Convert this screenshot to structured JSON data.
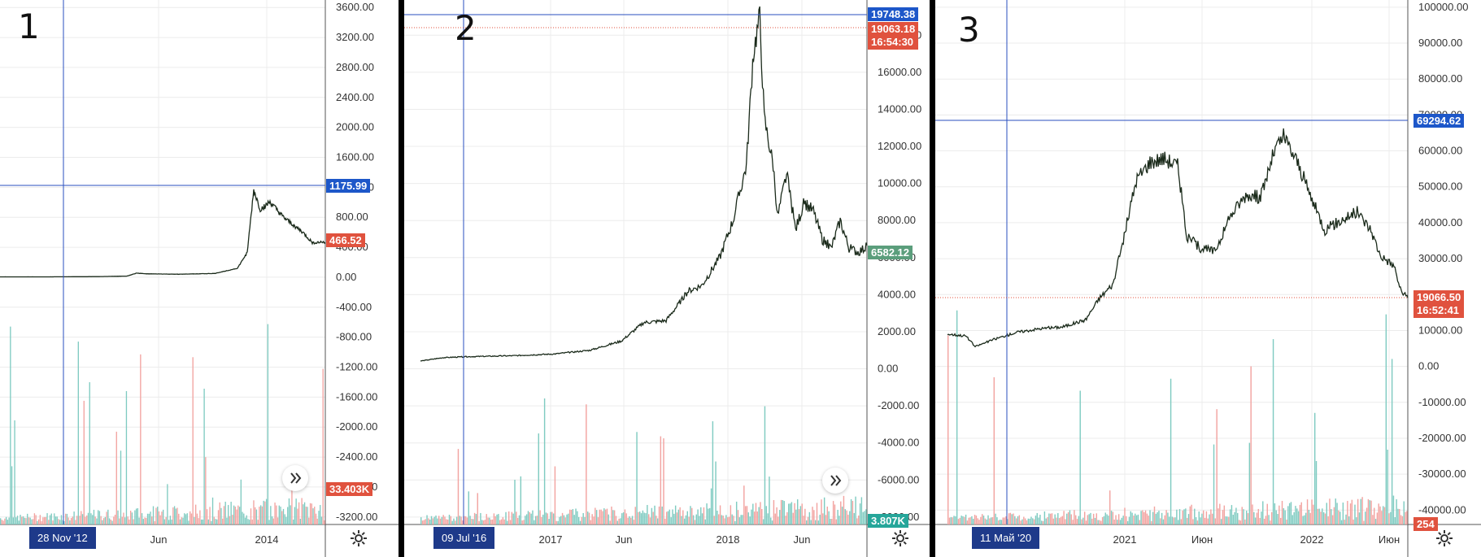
{
  "chart_data": [
    {
      "type": "line",
      "panel_label": "1",
      "yticks": [
        "3600.00",
        "3200.00",
        "2800.00",
        "2400.00",
        "2000.00",
        "1600.00",
        "1200.00",
        "800.00",
        "400.00",
        "0.00",
        "-400.00",
        "-800.00",
        "-1200.00",
        "-1600.00",
        "-2000.00",
        "-2400.00",
        "-2800.00",
        "-3200.00"
      ],
      "ylim": [
        -3300,
        3700
      ],
      "xticks": [
        "Jun",
        "2014"
      ],
      "crosshair_date": "28 Nov '12",
      "crosshair_value": "1175.99",
      "last_price": "466.52",
      "volume_label": "33.403K",
      "price_series": [
        [
          0,
          5
        ],
        [
          0.15,
          5
        ],
        [
          0.3,
          8
        ],
        [
          0.39,
          15
        ],
        [
          0.42,
          55
        ],
        [
          0.45,
          45
        ],
        [
          0.55,
          40
        ],
        [
          0.66,
          50
        ],
        [
          0.73,
          120
        ],
        [
          0.76,
          330
        ],
        [
          0.78,
          1160
        ],
        [
          0.8,
          900
        ],
        [
          0.83,
          1000
        ],
        [
          0.87,
          800
        ],
        [
          0.9,
          700
        ],
        [
          0.93,
          600
        ],
        [
          0.96,
          460
        ],
        [
          1,
          470
        ]
      ]
    },
    {
      "type": "line",
      "panel_label": "2",
      "yticks": [
        "18000.00",
        "16000.00",
        "14000.00",
        "12000.00",
        "10000.00",
        "8000.00",
        "6000.00",
        "4000.00",
        "2000.00",
        "0.00",
        "-2000.00",
        "-4000.00",
        "-6000.00",
        "-8000.00"
      ],
      "ylim": [
        -8400,
        19900
      ],
      "xticks": [
        "2017",
        "Jun",
        "2018",
        "Jun"
      ],
      "crosshair_date": "09 Jul '16",
      "crosshair_value": "19748.38",
      "last_price": "19063.18",
      "last_time": "16:54:30",
      "close_price": "6582.12",
      "volume_label": "3.807K",
      "price_series": [
        [
          0,
          420
        ],
        [
          0.05,
          600
        ],
        [
          0.1,
          650
        ],
        [
          0.2,
          700
        ],
        [
          0.3,
          800
        ],
        [
          0.38,
          1000
        ],
        [
          0.45,
          1500
        ],
        [
          0.5,
          2500
        ],
        [
          0.55,
          2600
        ],
        [
          0.6,
          4200
        ],
        [
          0.63,
          4500
        ],
        [
          0.67,
          6000
        ],
        [
          0.7,
          8000
        ],
        [
          0.73,
          11000
        ],
        [
          0.745,
          17000
        ],
        [
          0.76,
          19000
        ],
        [
          0.77,
          13500
        ],
        [
          0.79,
          11000
        ],
        [
          0.8,
          8200
        ],
        [
          0.82,
          10500
        ],
        [
          0.84,
          7500
        ],
        [
          0.86,
          9000
        ],
        [
          0.88,
          8500
        ],
        [
          0.9,
          7000
        ],
        [
          0.92,
          6500
        ],
        [
          0.94,
          8000
        ],
        [
          0.96,
          6500
        ],
        [
          0.98,
          6300
        ],
        [
          1,
          6580
        ]
      ]
    },
    {
      "type": "line",
      "panel_label": "3",
      "yticks": [
        "100000.00",
        "90000.00",
        "80000.00",
        "70000.00",
        "60000.00",
        "50000.00",
        "40000.00",
        "30000.00",
        "20000.00",
        "10000.00",
        "0.00",
        "-10000.00",
        "-20000.00",
        "-30000.00",
        "-40000.00"
      ],
      "ylim": [
        -44000,
        102000
      ],
      "xticks": [
        "2021",
        "Июн",
        "2022",
        "Июн"
      ],
      "crosshair_date": "11 Май '20",
      "crosshair_value": "69294.62",
      "last_price": "19066.50",
      "last_time": "16:52:41",
      "volume_label": "254",
      "price_series": [
        [
          0,
          9000
        ],
        [
          0.04,
          8500
        ],
        [
          0.06,
          5500
        ],
        [
          0.1,
          7500
        ],
        [
          0.15,
          9500
        ],
        [
          0.2,
          10500
        ],
        [
          0.25,
          11000
        ],
        [
          0.3,
          13000
        ],
        [
          0.33,
          19000
        ],
        [
          0.36,
          23000
        ],
        [
          0.38,
          34000
        ],
        [
          0.41,
          52000
        ],
        [
          0.44,
          57000
        ],
        [
          0.47,
          58000
        ],
        [
          0.5,
          56000
        ],
        [
          0.52,
          36000
        ],
        [
          0.55,
          33000
        ],
        [
          0.58,
          32000
        ],
        [
          0.62,
          43000
        ],
        [
          0.65,
          48000
        ],
        [
          0.68,
          47000
        ],
        [
          0.71,
          60000
        ],
        [
          0.73,
          64000
        ],
        [
          0.76,
          57000
        ],
        [
          0.79,
          47000
        ],
        [
          0.82,
          38000
        ],
        [
          0.86,
          41000
        ],
        [
          0.89,
          43000
        ],
        [
          0.92,
          38000
        ],
        [
          0.94,
          31000
        ],
        [
          0.97,
          28000
        ],
        [
          0.985,
          21000
        ],
        [
          1,
          19000
        ]
      ]
    }
  ]
}
